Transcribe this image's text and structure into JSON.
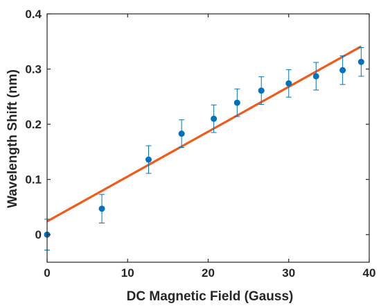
{
  "chart_data": {
    "type": "scatter",
    "title": "",
    "xlabel": "DC Magnetic Field (Gauss)",
    "ylabel": "Wavelength Shift (nm)",
    "xlim": [
      0,
      40
    ],
    "ylim": [
      -0.05,
      0.4
    ],
    "xticks": [
      0,
      10,
      20,
      30,
      40
    ],
    "yticks": [
      0,
      0.1,
      0.2,
      0.3,
      0.4
    ],
    "xtick_labels": [
      "0",
      "10",
      "20",
      "30",
      "40"
    ],
    "ytick_labels": [
      "0",
      "0.1",
      "0.2",
      "0.3",
      "0.4"
    ],
    "grid": false,
    "colors": {
      "points": "#0072BD",
      "fit": "#F25A1A",
      "axes": "#262626"
    },
    "series": [
      {
        "x": [
          0,
          6.8,
          12.6,
          16.7,
          20.7,
          23.6,
          26.6,
          30.0,
          33.4,
          36.7,
          39.0
        ],
        "y": [
          0.0,
          0.047,
          0.136,
          0.183,
          0.21,
          0.239,
          0.261,
          0.274,
          0.287,
          0.298,
          0.313
        ],
        "error": [
          0.028,
          0.026,
          0.025,
          0.025,
          0.025,
          0.025,
          0.025,
          0.025,
          0.025,
          0.026,
          0.026
        ]
      }
    ],
    "fit_line": {
      "x": [
        0,
        39
      ],
      "y": [
        0.024,
        0.341
      ]
    }
  }
}
